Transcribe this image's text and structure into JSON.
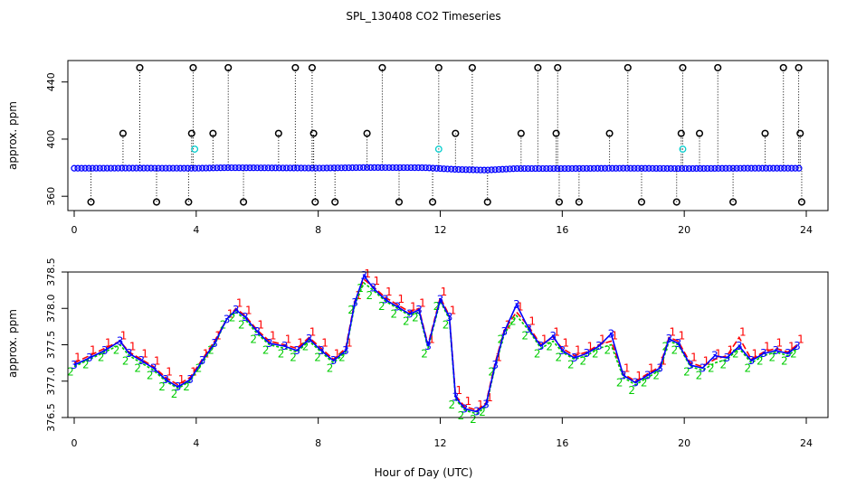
{
  "title": "SPL_130408  CO2 Timeseries",
  "xlabel": "Hour of Day (UTC)",
  "colors": {
    "circle_main": "#0000ff",
    "circle_alt": "#00cccc",
    "circle_outlier": "#000000",
    "series1": "#ff0000",
    "series2": "#00cc00",
    "series3": "#0000ff"
  },
  "chart_data": [
    {
      "type": "scatter",
      "name": "top-panel",
      "xlabel": "",
      "ylabel": "approx. ppm",
      "xlim": [
        0,
        24
      ],
      "ylim": [
        350,
        455
      ],
      "xticks": [
        0,
        4,
        8,
        12,
        16,
        20,
        24
      ],
      "yticks": [
        360,
        400,
        440
      ],
      "baseline": [
        [
          0.0,
          379.6
        ],
        [
          2.0,
          379.7
        ],
        [
          4.0,
          379.6
        ],
        [
          5.0,
          380.0
        ],
        [
          6.0,
          379.9
        ],
        [
          8.0,
          379.7
        ],
        [
          9.5,
          380.1
        ],
        [
          11.5,
          380.0
        ],
        [
          12.5,
          378.8
        ],
        [
          13.5,
          378.3
        ],
        [
          14.5,
          379.4
        ],
        [
          16.0,
          379.4
        ],
        [
          18.0,
          379.6
        ],
        [
          20.0,
          379.4
        ],
        [
          22.0,
          379.6
        ],
        [
          24.0,
          379.6
        ]
      ],
      "outliers_high": [
        2.15,
        3.9,
        5.05,
        7.25,
        7.8,
        10.1,
        11.95,
        13.05,
        15.2,
        15.85,
        18.15,
        19.95,
        21.1,
        23.25,
        23.75
      ],
      "outliers_mid": [
        1.6,
        3.85,
        4.55,
        6.7,
        7.85,
        9.6,
        12.5,
        14.65,
        15.8,
        17.55,
        19.9,
        20.5,
        22.65,
        23.8
      ],
      "outliers_low": [
        0.55,
        2.7,
        3.75,
        5.55,
        7.9,
        8.55,
        10.65,
        11.75,
        13.55,
        15.9,
        16.55,
        18.6,
        19.75,
        21.6,
        23.85
      ],
      "cyan_points": [
        [
          3.95,
          393
        ],
        [
          11.95,
          393
        ],
        [
          19.95,
          393
        ]
      ],
      "high_value": 450,
      "mid_value": 404,
      "low_value": 356
    },
    {
      "type": "line",
      "name": "bottom-panel",
      "xlabel": "Hour of Day (UTC)",
      "ylabel": "approx. ppm",
      "xlim": [
        0,
        24
      ],
      "ylim": [
        376.5,
        378.5
      ],
      "xticks": [
        0,
        4,
        8,
        12,
        16,
        20,
        24
      ],
      "yticks": [
        376.5,
        377.0,
        377.5,
        378.0,
        378.5
      ],
      "series": [
        {
          "name": "1",
          "points": [
            [
              0.0,
              377.25
            ],
            [
              0.5,
              377.35
            ],
            [
              1.0,
              377.45
            ],
            [
              1.5,
              377.55
            ],
            [
              1.8,
              377.4
            ],
            [
              2.2,
              377.3
            ],
            [
              2.6,
              377.2
            ],
            [
              3.0,
              377.05
            ],
            [
              3.4,
              376.95
            ],
            [
              3.8,
              377.05
            ],
            [
              4.2,
              377.3
            ],
            [
              4.6,
              377.55
            ],
            [
              5.0,
              377.85
            ],
            [
              5.3,
              378.0
            ],
            [
              5.6,
              377.9
            ],
            [
              6.0,
              377.7
            ],
            [
              6.4,
              377.55
            ],
            [
              6.9,
              377.5
            ],
            [
              7.3,
              377.45
            ],
            [
              7.7,
              377.6
            ],
            [
              8.1,
              377.45
            ],
            [
              8.5,
              377.3
            ],
            [
              8.9,
              377.45
            ],
            [
              9.2,
              378.1
            ],
            [
              9.5,
              378.4
            ],
            [
              9.8,
              378.3
            ],
            [
              10.2,
              378.15
            ],
            [
              10.6,
              378.05
            ],
            [
              11.0,
              377.95
            ],
            [
              11.3,
              378.0
            ],
            [
              11.6,
              377.5
            ],
            [
              12.0,
              378.15
            ],
            [
              12.3,
              377.9
            ],
            [
              12.5,
              376.8
            ],
            [
              12.8,
              376.65
            ],
            [
              13.2,
              376.6
            ],
            [
              13.5,
              376.7
            ],
            [
              13.8,
              377.25
            ],
            [
              14.1,
              377.7
            ],
            [
              14.5,
              377.95
            ],
            [
              14.9,
              377.75
            ],
            [
              15.3,
              377.5
            ],
            [
              15.7,
              377.6
            ],
            [
              16.0,
              377.45
            ],
            [
              16.4,
              377.35
            ],
            [
              16.8,
              377.4
            ],
            [
              17.2,
              377.5
            ],
            [
              17.6,
              377.55
            ],
            [
              18.0,
              377.1
            ],
            [
              18.4,
              377.0
            ],
            [
              18.8,
              377.1
            ],
            [
              19.2,
              377.2
            ],
            [
              19.5,
              377.6
            ],
            [
              19.8,
              377.55
            ],
            [
              20.2,
              377.25
            ],
            [
              20.6,
              377.2
            ],
            [
              21.0,
              377.3
            ],
            [
              21.4,
              377.35
            ],
            [
              21.8,
              377.6
            ],
            [
              22.2,
              377.3
            ],
            [
              22.6,
              377.4
            ],
            [
              23.0,
              377.45
            ],
            [
              23.4,
              377.4
            ],
            [
              23.7,
              377.5
            ]
          ]
        },
        {
          "name": "2",
          "points": [
            [
              0.0,
              377.2
            ],
            [
              0.5,
              377.3
            ],
            [
              1.0,
              377.4
            ],
            [
              1.5,
              377.5
            ],
            [
              1.8,
              377.35
            ],
            [
              2.2,
              377.25
            ],
            [
              2.6,
              377.15
            ],
            [
              3.0,
              377.0
            ],
            [
              3.4,
              376.9
            ],
            [
              3.8,
              377.0
            ],
            [
              4.2,
              377.25
            ],
            [
              4.6,
              377.5
            ],
            [
              5.0,
              377.85
            ],
            [
              5.3,
              377.95
            ],
            [
              5.6,
              377.85
            ],
            [
              6.0,
              377.65
            ],
            [
              6.4,
              377.5
            ],
            [
              6.9,
              377.45
            ],
            [
              7.3,
              377.4
            ],
            [
              7.7,
              377.55
            ],
            [
              8.1,
              377.4
            ],
            [
              8.5,
              377.25
            ],
            [
              8.9,
              377.4
            ],
            [
              9.2,
              378.05
            ],
            [
              9.5,
              378.35
            ],
            [
              9.8,
              378.25
            ],
            [
              10.2,
              378.1
            ],
            [
              10.6,
              378.0
            ],
            [
              11.0,
              377.9
            ],
            [
              11.3,
              377.95
            ],
            [
              11.6,
              377.45
            ],
            [
              12.0,
              378.1
            ],
            [
              12.3,
              377.85
            ],
            [
              12.5,
              376.75
            ],
            [
              12.8,
              376.6
            ],
            [
              13.2,
              376.55
            ],
            [
              13.5,
              376.65
            ],
            [
              13.8,
              377.2
            ],
            [
              14.1,
              377.65
            ],
            [
              14.5,
              377.9
            ],
            [
              14.9,
              377.7
            ],
            [
              15.3,
              377.45
            ],
            [
              15.7,
              377.55
            ],
            [
              16.0,
              377.4
            ],
            [
              16.4,
              377.3
            ],
            [
              16.8,
              377.35
            ],
            [
              17.2,
              377.45
            ],
            [
              17.6,
              377.5
            ],
            [
              18.0,
              377.05
            ],
            [
              18.4,
              376.95
            ],
            [
              18.8,
              377.05
            ],
            [
              19.2,
              377.15
            ],
            [
              19.5,
              377.55
            ],
            [
              19.8,
              377.5
            ],
            [
              20.2,
              377.2
            ],
            [
              20.6,
              377.15
            ],
            [
              21.0,
              377.25
            ],
            [
              21.4,
              377.3
            ],
            [
              21.8,
              377.45
            ],
            [
              22.2,
              377.25
            ],
            [
              22.6,
              377.35
            ],
            [
              23.0,
              377.4
            ],
            [
              23.4,
              377.35
            ],
            [
              23.7,
              377.45
            ]
          ]
        },
        {
          "name": "3",
          "points": [
            [
              0.0,
              377.22
            ],
            [
              0.5,
              377.32
            ],
            [
              1.0,
              377.42
            ],
            [
              1.5,
              377.55
            ],
            [
              1.8,
              377.38
            ],
            [
              2.2,
              377.28
            ],
            [
              2.6,
              377.18
            ],
            [
              3.0,
              377.02
            ],
            [
              3.4,
              376.92
            ],
            [
              3.8,
              377.02
            ],
            [
              4.2,
              377.28
            ],
            [
              4.6,
              377.52
            ],
            [
              5.0,
              377.85
            ],
            [
              5.3,
              377.98
            ],
            [
              5.6,
              377.88
            ],
            [
              6.0,
              377.68
            ],
            [
              6.4,
              377.52
            ],
            [
              6.9,
              377.48
            ],
            [
              7.3,
              377.42
            ],
            [
              7.7,
              377.58
            ],
            [
              8.1,
              377.42
            ],
            [
              8.5,
              377.28
            ],
            [
              8.9,
              377.42
            ],
            [
              9.2,
              378.08
            ],
            [
              9.5,
              378.45
            ],
            [
              9.8,
              378.28
            ],
            [
              10.2,
              378.12
            ],
            [
              10.6,
              378.02
            ],
            [
              11.0,
              377.92
            ],
            [
              11.3,
              377.98
            ],
            [
              11.6,
              377.48
            ],
            [
              12.0,
              378.12
            ],
            [
              12.3,
              377.88
            ],
            [
              12.5,
              376.78
            ],
            [
              12.8,
              376.62
            ],
            [
              13.2,
              376.58
            ],
            [
              13.5,
              376.68
            ],
            [
              13.8,
              377.22
            ],
            [
              14.1,
              377.68
            ],
            [
              14.5,
              378.05
            ],
            [
              14.9,
              377.72
            ],
            [
              15.3,
              377.48
            ],
            [
              15.7,
              377.62
            ],
            [
              16.0,
              377.42
            ],
            [
              16.4,
              377.32
            ],
            [
              16.8,
              377.38
            ],
            [
              17.2,
              377.48
            ],
            [
              17.6,
              377.65
            ],
            [
              18.0,
              377.08
            ],
            [
              18.4,
              376.98
            ],
            [
              18.8,
              377.08
            ],
            [
              19.2,
              377.18
            ],
            [
              19.5,
              377.58
            ],
            [
              19.8,
              377.52
            ],
            [
              20.2,
              377.22
            ],
            [
              20.6,
              377.18
            ],
            [
              21.0,
              377.35
            ],
            [
              21.4,
              377.32
            ],
            [
              21.8,
              377.48
            ],
            [
              22.2,
              377.28
            ],
            [
              22.6,
              377.38
            ],
            [
              23.0,
              377.42
            ],
            [
              23.4,
              377.38
            ],
            [
              23.7,
              377.48
            ]
          ]
        }
      ]
    }
  ]
}
